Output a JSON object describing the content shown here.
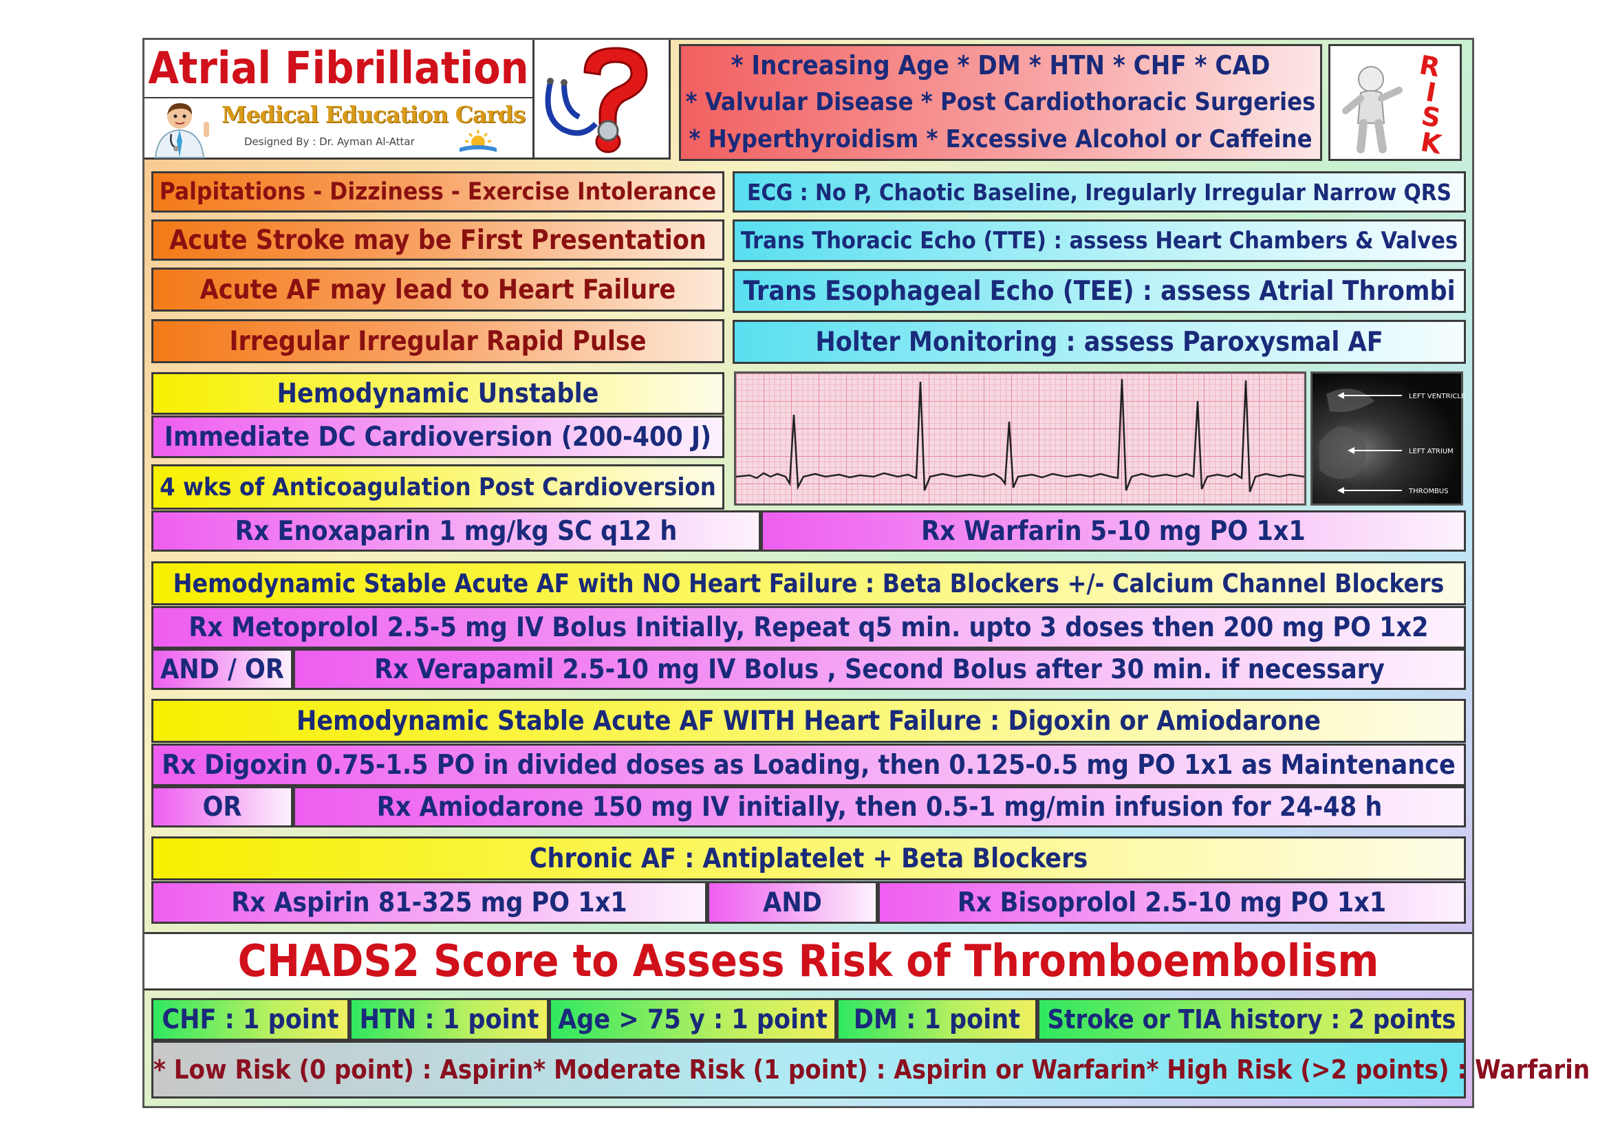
{
  "header": {
    "title": "Atrial Fibrillation",
    "logo_text": "Medical Education Cards",
    "designer": "Designed By : Dr. Ayman Al-Attar",
    "risk_factors": [
      "* Increasing Age * DM * HTN * CHF * CAD",
      "* Valvular Disease * Post Cardiothoracic Surgeries",
      "* Hyperthyroidism * Excessive Alcohol or Caffeine"
    ],
    "risk_label": "RISK"
  },
  "presentation": [
    "Palpitations - Dizziness - Exercise Intolerance",
    "Acute Stroke may be First Presentation",
    "Acute AF may lead to Heart Failure",
    "Irregular Irregular Rapid Pulse"
  ],
  "investigations": [
    "ECG : No P, Chaotic Baseline, Iregularly Irregular Narrow QRS",
    "Trans Thoracic Echo (TTE) : assess Heart Chambers & Valves",
    "Trans Esophageal Echo (TEE) : assess Atrial Thrombi",
    "Holter Monitoring : assess Paroxysmal AF"
  ],
  "echo_labels": [
    "LEFT VENTRICLE",
    "LEFT ATRIUM",
    "THROMBUS"
  ],
  "unstable": {
    "heading": "Hemodynamic Unstable",
    "treatment": "Immediate DC Cardioversion (200-400 J)",
    "anticoag": "4 wks of Anticoagulation Post Cardioversion",
    "rx_left": "Rx Enoxaparin 1 mg/kg SC q12 h",
    "rx_right": "Rx Warfarin 5-10 mg PO 1x1"
  },
  "stable_no_hf": {
    "heading": "Hemodynamic Stable Acute AF with NO Heart Failure : Beta Blockers +/- Calcium Channel Blockers",
    "rx1": "Rx Metoprolol 2.5-5 mg IV Bolus Initially, Repeat q5 min. upto 3 doses then 200 mg PO 1x2",
    "connector": "AND / OR",
    "rx2": "Rx Verapamil 2.5-10 mg IV Bolus , Second Bolus after 30 min. if necessary"
  },
  "stable_hf": {
    "heading": "Hemodynamic Stable Acute AF WITH Heart Failure : Digoxin or Amiodarone",
    "rx1": "Rx Digoxin 0.75-1.5 PO in divided doses as Loading, then 0.125-0.5 mg PO 1x1 as Maintenance",
    "connector": "OR",
    "rx2": "Rx Amiodarone 150 mg IV initially, then 0.5-1 mg/min infusion for 24-48 h"
  },
  "chronic": {
    "heading": "Chronic AF : Antiplatelet + Beta Blockers",
    "rx1": "Rx Aspirin 81-325 mg PO 1x1",
    "connector": "AND",
    "rx2": "Rx Bisoprolol 2.5-10 mg PO 1x1"
  },
  "chads": {
    "title": "CHADS2 Score to Assess Risk of Thromboembolism",
    "items": [
      "CHF : 1 point",
      "HTN : 1 point",
      "Age > 75 y : 1 point",
      "DM : 1 point",
      "Stroke or TIA history : 2 points"
    ],
    "risks": [
      "* Low Risk (0 point) : Aspirin",
      "* Moderate Risk (1 point) : Aspirin or Warfarin",
      "* High Risk (>2 points) : Warfarin"
    ]
  },
  "colors": {
    "title_red": "#d0101a",
    "text_navy": "#1a2a7a",
    "orange": "#f47a18",
    "cyan": "#58dff0",
    "yellow": "#f8f000",
    "magenta": "#ee5ef0"
  },
  "icons": [
    "doctor-icon",
    "stethoscope-question-icon",
    "risk-figure-icon",
    "sun-book-icon"
  ]
}
